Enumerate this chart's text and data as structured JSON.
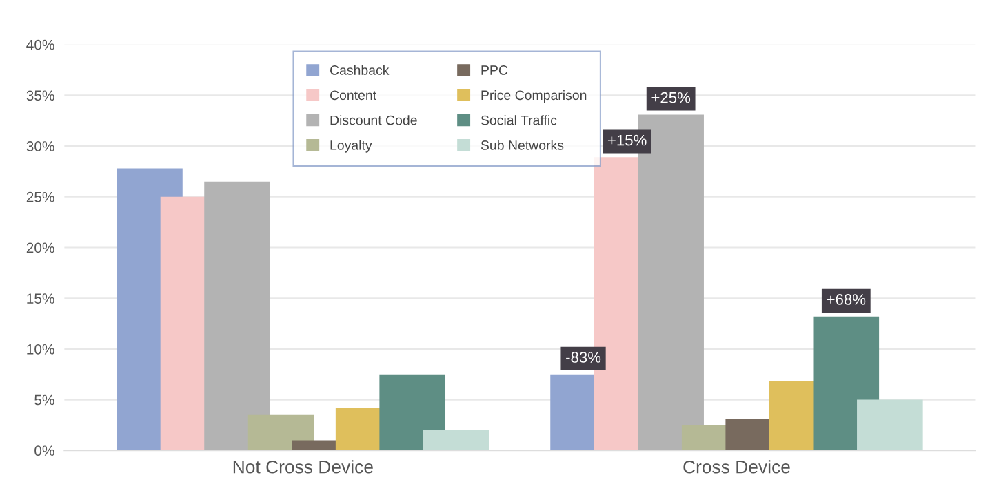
{
  "chart_data": {
    "type": "bar",
    "categories": [
      "Not Cross Device",
      "Cross Device"
    ],
    "series": [
      {
        "name": "Cashback",
        "color": "#91a5d1",
        "values": [
          27.8,
          7.5
        ]
      },
      {
        "name": "Content",
        "color": "#f6c8c7",
        "values": [
          25,
          28.9
        ]
      },
      {
        "name": "Discount Code",
        "color": "#b3b3b3",
        "values": [
          26.5,
          33.1
        ]
      },
      {
        "name": "Loyalty",
        "color": "#b5b995",
        "values": [
          3.5,
          2.5
        ]
      },
      {
        "name": "PPC",
        "color": "#786a5e",
        "values": [
          1,
          3.1
        ]
      },
      {
        "name": "Price Comparison",
        "color": "#dfbf5c",
        "values": [
          4.2,
          6.8
        ]
      },
      {
        "name": "Social Traffic",
        "color": "#5e8e84",
        "values": [
          7.5,
          13.2
        ]
      },
      {
        "name": "Sub Networks",
        "color": "#c4ddd6",
        "values": [
          2,
          5
        ]
      }
    ],
    "ylim": [
      0,
      40
    ],
    "yticks": [
      {
        "value": 0,
        "label": "0%"
      },
      {
        "value": 5,
        "label": "5%"
      },
      {
        "value": 10,
        "label": "10%"
      },
      {
        "value": 15,
        "label": "15%"
      },
      {
        "value": 20,
        "label": "20%"
      },
      {
        "value": 25,
        "label": "25%"
      },
      {
        "value": 30,
        "label": "30%"
      },
      {
        "value": 35,
        "label": "35%"
      },
      {
        "value": 40,
        "label": "40%"
      }
    ],
    "annotations": [
      "-83%",
      "+15%",
      "+25%",
      "+68%"
    ],
    "grid": "y",
    "legend": "top"
  }
}
